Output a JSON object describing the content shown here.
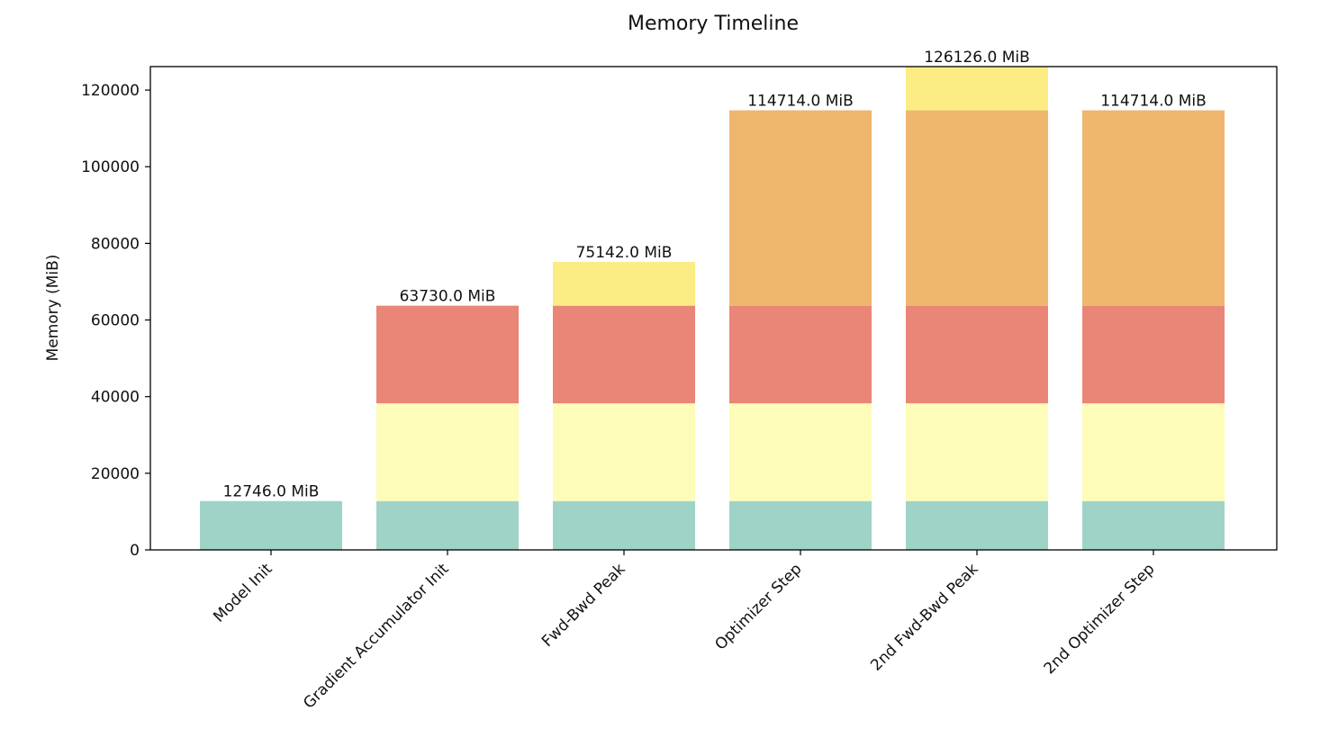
{
  "chart_data": {
    "type": "bar",
    "stacked": true,
    "title": "Memory Timeline",
    "xlabel": "",
    "ylabel": "Memory (MiB)",
    "ylim": [
      0,
      126126
    ],
    "yticks": [
      "0",
      "20000",
      "40000",
      "60000",
      "80000",
      "100000",
      "120000"
    ],
    "ytick_values": [
      0,
      20000,
      40000,
      60000,
      80000,
      100000,
      120000
    ],
    "grid": false,
    "legend": "none",
    "categories": [
      "Model Init",
      "Gradient Accumulator Init",
      "Fwd-Bwd Peak",
      "Optimizer Step",
      "2nd Fwd-Bwd Peak",
      "2nd Optimizer Step"
    ],
    "series": [
      {
        "color": "#9fd3c7",
        "values": [
          12746,
          12746,
          12746,
          12746,
          12746,
          12746
        ]
      },
      {
        "color": "#fdfcb9",
        "values": [
          0,
          25492,
          25492,
          25492,
          25492,
          25492
        ]
      },
      {
        "color": "#e98677",
        "values": [
          0,
          25492,
          25492,
          25492,
          25492,
          25492
        ]
      },
      {
        "color": "#fcec84",
        "values": [
          0,
          0,
          11412,
          0,
          11412,
          0
        ]
      },
      {
        "color": "#efb66d",
        "values": [
          0,
          0,
          0,
          50984,
          50984,
          50984
        ]
      }
    ],
    "stack_order": [
      0,
      1,
      2,
      4,
      3
    ],
    "totals": [
      12746,
      63730,
      75142,
      114714,
      126126,
      114714
    ],
    "total_labels": [
      "12746.0 MiB",
      "63730.0 MiB",
      "75142.0 MiB",
      "114714.0 MiB",
      "126126.0 MiB",
      "114714.0 MiB"
    ]
  }
}
